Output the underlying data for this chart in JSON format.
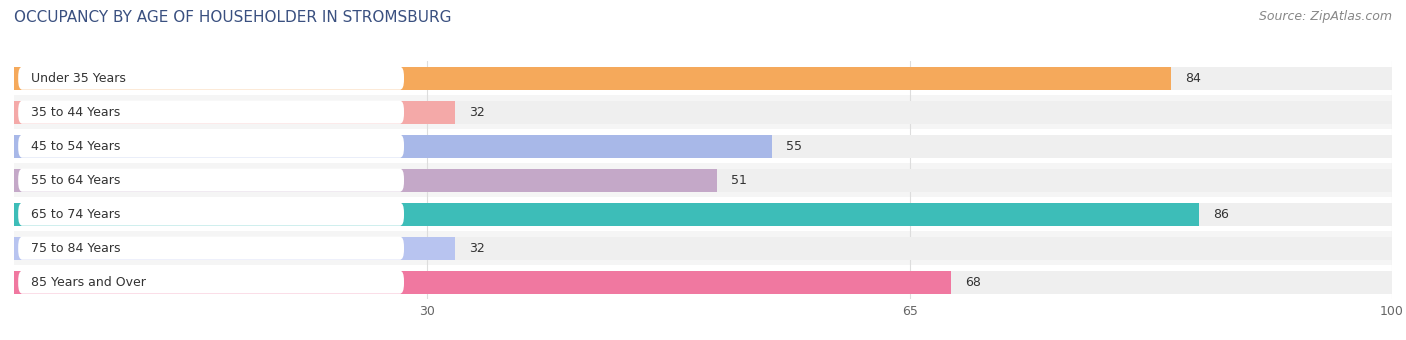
{
  "title": "OCCUPANCY BY AGE OF HOUSEHOLDER IN STROMSBURG",
  "source": "Source: ZipAtlas.com",
  "categories": [
    "Under 35 Years",
    "35 to 44 Years",
    "45 to 54 Years",
    "55 to 64 Years",
    "65 to 74 Years",
    "75 to 84 Years",
    "85 Years and Over"
  ],
  "values": [
    84,
    32,
    55,
    51,
    86,
    32,
    68
  ],
  "bar_colors": [
    "#F5A95B",
    "#F4A9A8",
    "#A8B8E8",
    "#C4A8C8",
    "#3DBDB8",
    "#B8C4F0",
    "#F078A0"
  ],
  "bar_bg_color": "#EFEFEF",
  "xlim": [
    0,
    100
  ],
  "xticks": [
    30,
    65,
    100
  ],
  "title_fontsize": 11,
  "source_fontsize": 9,
  "label_fontsize": 9,
  "value_fontsize": 9,
  "bar_height": 0.68,
  "background_color": "#FFFFFF",
  "row_bg_colors": [
    "#FFFFFF",
    "#F5F5F5"
  ],
  "title_color": "#3A5080",
  "grid_color": "#DDDDDD",
  "label_bg_color": "#FFFFFF"
}
